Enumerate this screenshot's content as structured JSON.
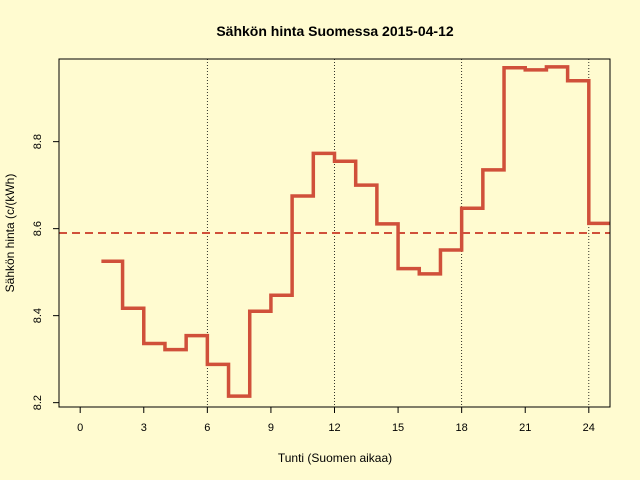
{
  "chart_data": {
    "type": "line",
    "step": true,
    "title": "Sähkön hinta Suomessa 2015-04-12",
    "xlabel": "Tunti (Suomen aikaa)",
    "ylabel": "Sähkön hinta (c/(kWh)",
    "xlim": [
      -1,
      25
    ],
    "ylim": [
      8.19,
      8.99
    ],
    "x_ticks": [
      0,
      3,
      6,
      9,
      12,
      15,
      18,
      21,
      24
    ],
    "y_ticks": [
      8.2,
      8.4,
      8.6,
      8.8
    ],
    "vertical_gridlines_x": [
      6,
      12,
      18,
      24
    ],
    "reference_line": {
      "y": 8.59,
      "style": "dashed",
      "color": "#d0503a"
    },
    "series": [
      {
        "color": "#d0503a",
        "x": [
          1,
          2,
          3,
          4,
          5,
          6,
          7,
          8,
          9,
          10,
          11,
          12,
          13,
          14,
          15,
          16,
          17,
          18,
          19,
          20,
          21,
          22,
          23,
          24
        ],
        "values": [
          8.525,
          8.417,
          8.336,
          8.322,
          8.354,
          8.288,
          8.215,
          8.41,
          8.447,
          8.675,
          8.773,
          8.755,
          8.7,
          8.611,
          8.508,
          8.496,
          8.551,
          8.647,
          8.735,
          8.97,
          8.965,
          8.972,
          8.94,
          8.612
        ]
      }
    ]
  }
}
